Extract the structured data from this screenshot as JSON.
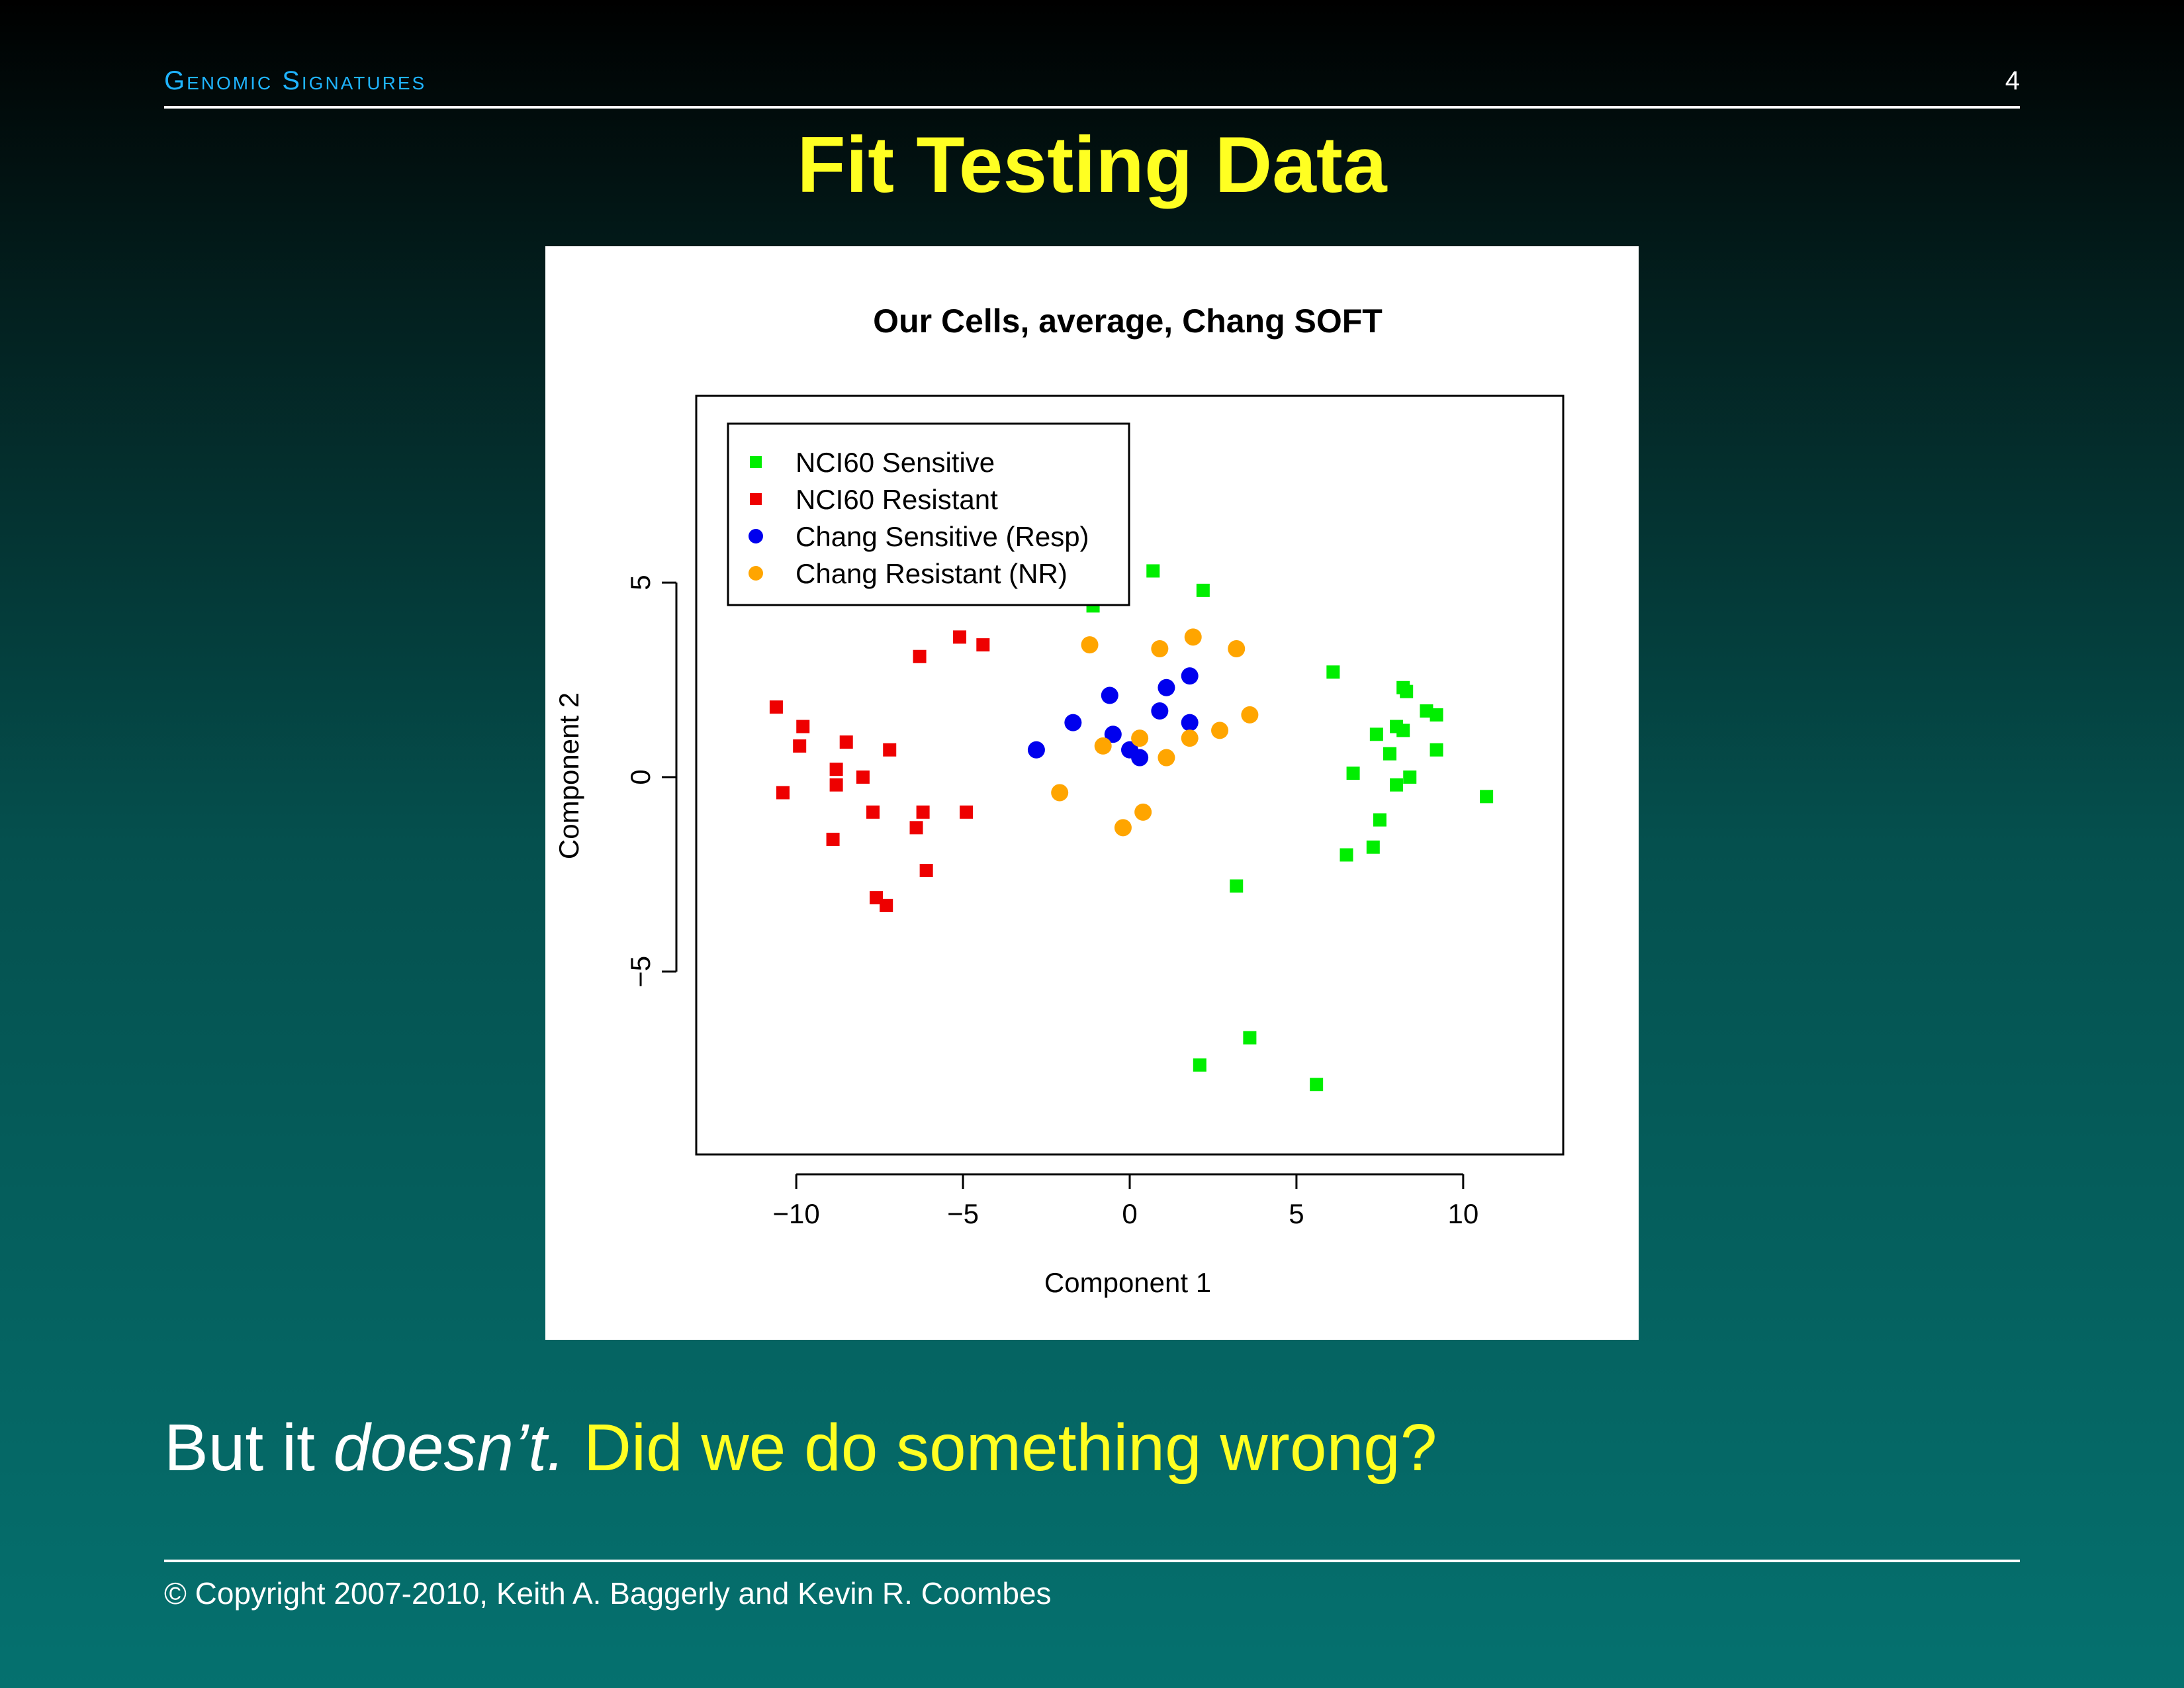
{
  "header": {
    "section_title": "Genomic Signatures",
    "page_number": "4"
  },
  "slide": {
    "title": "Fit Testing Data",
    "caption_part1": "But it ",
    "caption_emphasis": "doesn’t.",
    "caption_question": "Did we do something wrong?",
    "footer": "© Copyright 2007-2010, Keith A. Baggerly and Kevin R. Coombes"
  },
  "colors": {
    "header_accent": "#1fb4ff",
    "title_yellow": "#ffff22",
    "nci60_sensitive": "#00ee00",
    "nci60_resistant": "#ee0000",
    "chang_sensitive": "#0000ee",
    "chang_resistant": "#ffa500"
  },
  "chart_data": {
    "type": "scatter",
    "title": "Our Cells, average, Chang SOFT",
    "xlabel": "Component 1",
    "ylabel": "Component 2",
    "xlim": [
      -13,
      13
    ],
    "ylim": [
      -9.7,
      9.8
    ],
    "xticks": [
      -10,
      -5,
      0,
      5,
      10
    ],
    "yticks": [
      -5,
      0,
      5
    ],
    "tick_labels_x": [
      "−10",
      "−5",
      "0",
      "5",
      "10"
    ],
    "tick_labels_y": [
      "−5",
      "0",
      "5"
    ],
    "grid": false,
    "legend_position": "top-left",
    "series": [
      {
        "name": "NCI60 Sensitive",
        "marker": "square",
        "color": "#00ee00",
        "points": [
          [
            0.7,
            5.3
          ],
          [
            2.2,
            4.8
          ],
          [
            -1.1,
            4.4
          ],
          [
            6.1,
            2.7
          ],
          [
            8.2,
            2.3
          ],
          [
            8.3,
            2.2
          ],
          [
            8.9,
            1.7
          ],
          [
            9.2,
            1.6
          ],
          [
            8.0,
            1.3
          ],
          [
            7.4,
            1.1
          ],
          [
            8.2,
            1.2
          ],
          [
            9.2,
            0.7
          ],
          [
            7.8,
            0.6
          ],
          [
            6.7,
            0.1
          ],
          [
            8.4,
            0.0
          ],
          [
            8.0,
            -0.2
          ],
          [
            10.7,
            -0.5
          ],
          [
            7.5,
            -1.1
          ],
          [
            6.5,
            -2.0
          ],
          [
            7.3,
            -1.8
          ],
          [
            3.2,
            -2.8
          ],
          [
            3.6,
            -6.7
          ],
          [
            2.1,
            -7.4
          ],
          [
            5.6,
            -7.9
          ]
        ]
      },
      {
        "name": "NCI60 Resistant",
        "marker": "square",
        "color": "#ee0000",
        "points": [
          [
            -5.1,
            3.6
          ],
          [
            -4.4,
            3.4
          ],
          [
            -6.3,
            3.1
          ],
          [
            -10.6,
            1.8
          ],
          [
            -9.8,
            1.3
          ],
          [
            -8.5,
            0.9
          ],
          [
            -9.9,
            0.8
          ],
          [
            -7.2,
            0.7
          ],
          [
            -8.8,
            0.2
          ],
          [
            -8.0,
            0.0
          ],
          [
            -8.8,
            -0.2
          ],
          [
            -10.4,
            -0.4
          ],
          [
            -7.7,
            -0.9
          ],
          [
            -6.2,
            -0.9
          ],
          [
            -4.9,
            -0.9
          ],
          [
            -6.4,
            -1.3
          ],
          [
            -8.9,
            -1.6
          ],
          [
            -6.1,
            -2.4
          ],
          [
            -7.6,
            -3.1
          ],
          [
            -7.3,
            -3.3
          ]
        ]
      },
      {
        "name": "Chang Sensitive (Resp)",
        "marker": "circle",
        "color": "#0000ee",
        "points": [
          [
            1.8,
            2.6
          ],
          [
            1.1,
            2.3
          ],
          [
            -0.6,
            2.1
          ],
          [
            0.9,
            1.7
          ],
          [
            -1.7,
            1.4
          ],
          [
            1.8,
            1.4
          ],
          [
            -0.5,
            1.1
          ],
          [
            -2.8,
            0.7
          ],
          [
            0.0,
            0.7
          ],
          [
            0.3,
            0.5
          ]
        ]
      },
      {
        "name": "Chang Resistant (NR)",
        "marker": "circle",
        "color": "#ffa500",
        "points": [
          [
            1.9,
            3.6
          ],
          [
            -1.2,
            3.4
          ],
          [
            0.9,
            3.3
          ],
          [
            3.2,
            3.3
          ],
          [
            3.6,
            1.6
          ],
          [
            2.7,
            1.2
          ],
          [
            0.3,
            1.0
          ],
          [
            1.8,
            1.0
          ],
          [
            -0.8,
            0.8
          ],
          [
            1.1,
            0.5
          ],
          [
            -2.1,
            -0.4
          ],
          [
            0.4,
            -0.9
          ],
          [
            -0.2,
            -1.3
          ]
        ]
      }
    ]
  }
}
